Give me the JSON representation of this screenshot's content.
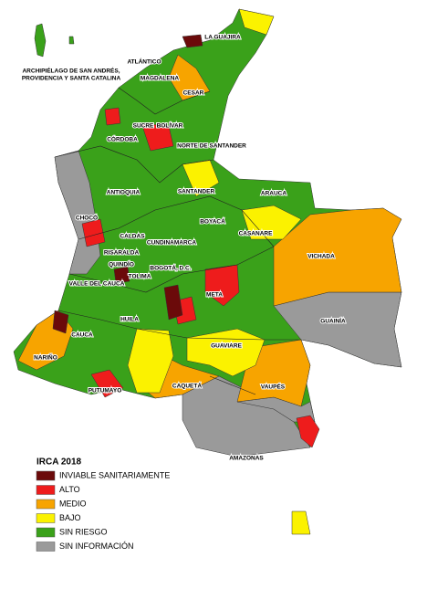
{
  "map": {
    "labels": [
      "LA GUAJIRA",
      "ARCHIPIÉLAGO DE SAN ANDRÉS,",
      "PROVIDENCIA Y SANTA CATALINA",
      "ATLÁNTICO",
      "MAGDALENA",
      "CESAR",
      "SUCRE",
      "BOLÍVAR",
      "CÓRDOBA",
      "NORTE DE SANTANDER",
      "ANTIOQUIA",
      "SANTANDER",
      "ARAUCA",
      "CHOCÓ",
      "BOYACÁ",
      "CASANARE",
      "CALDAS",
      "RISARALDA",
      "CUNDINAMARCA",
      "VICHADA",
      "QUINDÍO",
      "TOLIMA",
      "BOGOTÁ, D.C.",
      "VALLE DEL CAUCA",
      "META",
      "HUILA",
      "GUAINÍA",
      "CAUCA",
      "GUAVIARE",
      "NARIÑO",
      "VAUPÉS",
      "CAQUETÁ",
      "PUTUMAYO",
      "AMAZONAS"
    ],
    "legend": {
      "title": "IRCA 2018",
      "items": [
        {
          "label": "INVIABLE SANITARIAMENTE",
          "color": "#6b0a0a"
        },
        {
          "label": "ALTO",
          "color": "#ee1c1c"
        },
        {
          "label": "MEDIO",
          "color": "#f7a400"
        },
        {
          "label": "BAJO",
          "color": "#fbf200"
        },
        {
          "label": "SIN RIESGO",
          "color": "#3aa11a"
        },
        {
          "label": "SIN INFORMACIÓN",
          "color": "#9a9a9a"
        }
      ]
    }
  }
}
